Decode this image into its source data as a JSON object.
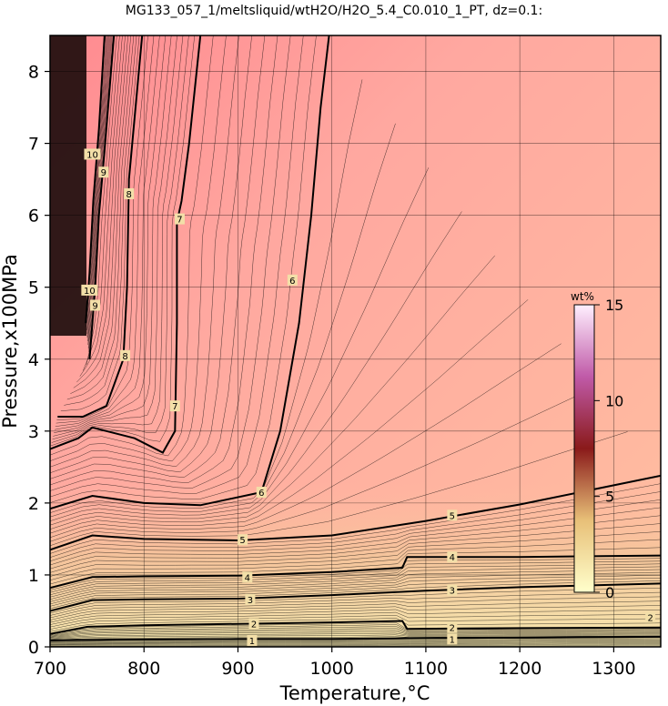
{
  "chart_data": {
    "type": "heatmap",
    "title": "MG133_057_1/meltsliquid/wtH2O/H2O_5.4_C0.010_1_PT, dz=0.1:",
    "xlabel": "Temperature,°C",
    "ylabel": "Pressure,x100MPa",
    "xlim": [
      700,
      1350
    ],
    "ylim": [
      0,
      8.5
    ],
    "x_ticks": [
      "700",
      "800",
      "900",
      "1000",
      "1100",
      "1200",
      "1300"
    ],
    "y_ticks": [
      "0",
      "1",
      "2",
      "3",
      "4",
      "5",
      "6",
      "7",
      "8"
    ],
    "grid": true,
    "colorbar": {
      "title": "wt%",
      "range": [
        0,
        15
      ],
      "ticks": [
        "0",
        "5",
        "10",
        "15"
      ],
      "colors": [
        "#ffffcc",
        "#e8c078",
        "#8a1a1a",
        "#c05aa8",
        "#fff0ff"
      ]
    },
    "background_color": "#ffbfa0",
    "contours": [
      {
        "level": 1,
        "label": "1",
        "points": [
          [
            700,
            0.09
          ],
          [
            760,
            0.1
          ],
          [
            900,
            0.11
          ],
          [
            1000,
            0.11
          ],
          [
            1080,
            0.12
          ],
          [
            1200,
            0.13
          ],
          [
            1350,
            0.14
          ]
        ]
      },
      {
        "level": 2,
        "label": "2",
        "points": [
          [
            700,
            0.18
          ],
          [
            740,
            0.28
          ],
          [
            800,
            0.3
          ],
          [
            900,
            0.32
          ],
          [
            1000,
            0.34
          ],
          [
            1075,
            0.36
          ],
          [
            1080,
            0.25
          ],
          [
            1200,
            0.26
          ],
          [
            1350,
            0.27
          ]
        ]
      },
      {
        "level": 3,
        "label": "3",
        "points": [
          [
            700,
            0.5
          ],
          [
            745,
            0.65
          ],
          [
            800,
            0.66
          ],
          [
            900,
            0.67
          ],
          [
            1000,
            0.72
          ],
          [
            1100,
            0.78
          ],
          [
            1200,
            0.83
          ],
          [
            1350,
            0.88
          ]
        ]
      },
      {
        "level": 4,
        "label": "4",
        "points": [
          [
            700,
            0.82
          ],
          [
            745,
            0.97
          ],
          [
            800,
            0.98
          ],
          [
            900,
            0.99
          ],
          [
            1000,
            1.04
          ],
          [
            1075,
            1.1
          ],
          [
            1080,
            1.25
          ],
          [
            1200,
            1.25
          ],
          [
            1350,
            1.27
          ]
        ]
      },
      {
        "level": 5,
        "label": "5",
        "points": [
          [
            700,
            1.35
          ],
          [
            745,
            1.55
          ],
          [
            800,
            1.5
          ],
          [
            900,
            1.48
          ],
          [
            1000,
            1.55
          ],
          [
            1100,
            1.75
          ],
          [
            1200,
            1.98
          ],
          [
            1350,
            2.38
          ]
        ]
      },
      {
        "level": 6,
        "label": "6",
        "points": [
          [
            700,
            1.92
          ],
          [
            745,
            2.1
          ],
          [
            800,
            2.0
          ],
          [
            860,
            1.97
          ],
          [
            925,
            2.15
          ],
          [
            945,
            3.0
          ],
          [
            965,
            4.5
          ],
          [
            978,
            6.0
          ],
          [
            988,
            7.5
          ],
          [
            997,
            8.5
          ]
        ]
      },
      {
        "level": 7,
        "label": "7",
        "points": [
          [
            700,
            2.75
          ],
          [
            730,
            2.9
          ],
          [
            745,
            3.05
          ],
          [
            790,
            2.9
          ],
          [
            820,
            2.7
          ],
          [
            833,
            3.0
          ],
          [
            835,
            4.5
          ],
          [
            835,
            5.9
          ],
          [
            840,
            6.2
          ],
          [
            848,
            7.0
          ],
          [
            860,
            8.5
          ]
        ]
      },
      {
        "level": 8,
        "label": "8",
        "points": [
          [
            708,
            3.2
          ],
          [
            735,
            3.2
          ],
          [
            760,
            3.35
          ],
          [
            778,
            4.0
          ],
          [
            782,
            5.0
          ],
          [
            784,
            6.5
          ],
          [
            798,
            8.5
          ]
        ]
      },
      {
        "level": 9,
        "label": "9",
        "points": [
          [
            742,
            4.0
          ],
          [
            748,
            5.0
          ],
          [
            752,
            6.0
          ],
          [
            758,
            6.9
          ],
          [
            768,
            8.5
          ]
        ]
      },
      {
        "level": 10,
        "label": "10",
        "points": [
          [
            738,
            4.5
          ],
          [
            742,
            5.2
          ],
          [
            746,
            6.2
          ],
          [
            752,
            7.2
          ],
          [
            758,
            8.5
          ]
        ]
      }
    ],
    "contour_labels": [
      {
        "text": "1",
        "x": 915,
        "y": 0.09
      },
      {
        "text": "2",
        "x": 917,
        "y": 0.32
      },
      {
        "text": "3",
        "x": 913,
        "y": 0.66
      },
      {
        "text": "4",
        "x": 910,
        "y": 0.97
      },
      {
        "text": "5",
        "x": 905,
        "y": 1.49
      },
      {
        "text": "6",
        "x": 925,
        "y": 2.15
      },
      {
        "text": "7",
        "x": 833,
        "y": 3.35
      },
      {
        "text": "8",
        "x": 780,
        "y": 4.05
      },
      {
        "text": "9",
        "x": 748,
        "y": 4.75
      },
      {
        "text": "10",
        "x": 742,
        "y": 4.96
      },
      {
        "text": "7",
        "x": 838,
        "y": 5.95
      },
      {
        "text": "8",
        "x": 784,
        "y": 6.3
      },
      {
        "text": "9",
        "x": 757,
        "y": 6.6
      },
      {
        "text": "10",
        "x": 745,
        "y": 6.85
      },
      {
        "text": "6",
        "x": 958,
        "y": 5.1
      },
      {
        "text": "1",
        "x": 1128,
        "y": 0.11
      },
      {
        "text": "2",
        "x": 1128,
        "y": 0.27
      },
      {
        "text": "3",
        "x": 1128,
        "y": 0.79
      },
      {
        "text": "4",
        "x": 1128,
        "y": 1.25
      },
      {
        "text": "5",
        "x": 1128,
        "y": 1.83
      },
      {
        "text": "2",
        "x": 1339,
        "y": 0.41
      }
    ]
  }
}
